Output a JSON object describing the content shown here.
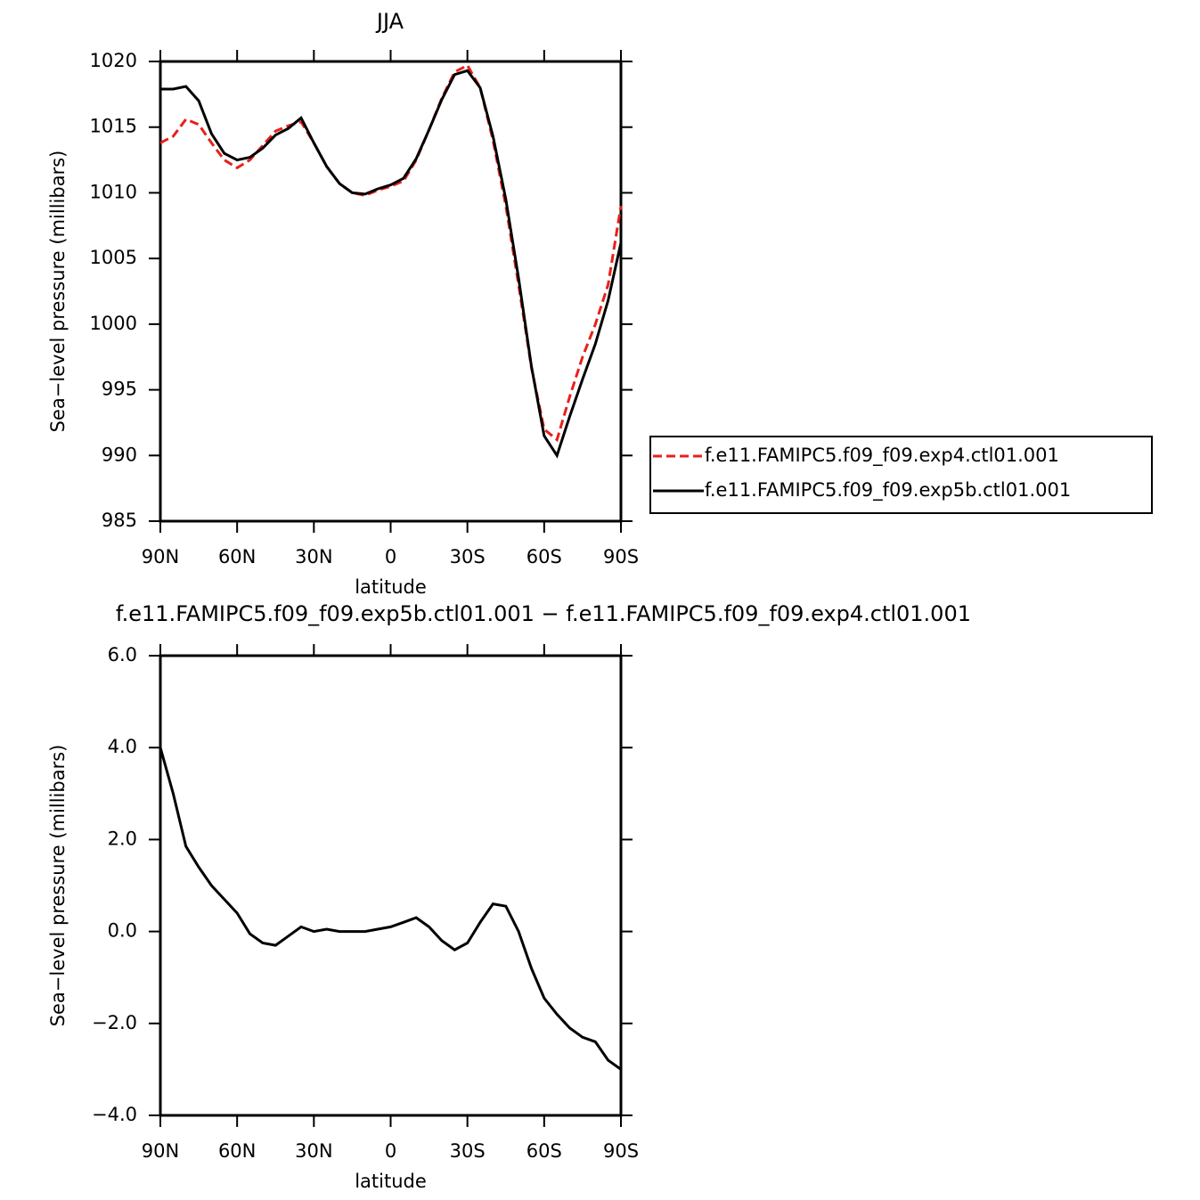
{
  "chart_data": [
    {
      "type": "line",
      "title": "JJA",
      "xlabel": "latitude",
      "ylabel": "Sea−level pressure (millibars)",
      "x": [
        90,
        85,
        80,
        75,
        70,
        65,
        60,
        55,
        50,
        45,
        40,
        35,
        30,
        25,
        20,
        15,
        10,
        5,
        0,
        -5,
        -10,
        -15,
        -20,
        -25,
        -30,
        -35,
        -40,
        -45,
        -50,
        -55,
        -60,
        -65,
        -70,
        -75,
        -80,
        -85,
        -90
      ],
      "series": [
        {
          "name": "f.e11.FAMIPC5.f09_f09.exp4.ctl01.001",
          "color": "#e8201c",
          "linestyle": "dashed",
          "values": [
            1013.8,
            1014.3,
            1015.6,
            1015.2,
            1013.8,
            1012.5,
            1011.9,
            1012.5,
            1013.6,
            1014.7,
            1015.1,
            1015.4,
            1013.8,
            1012.0,
            1010.7,
            1010.0,
            1009.8,
            1010.2,
            1010.5,
            1010.9,
            1012.5,
            1014.8,
            1017.2,
            1019.2,
            1019.7,
            1018.0,
            1014.0,
            1009.0,
            1003.0,
            996.7,
            992.0,
            991.2,
            994.5,
            997.5,
            1000.0,
            1003.0,
            1009.0
          ]
        },
        {
          "name": "f.e11.FAMIPC5.f09_f09.exp5b.ctl01.001",
          "color": "#000000",
          "linestyle": "solid",
          "values": [
            1017.9,
            1017.9,
            1018.1,
            1017.0,
            1014.5,
            1013.0,
            1012.5,
            1012.7,
            1013.4,
            1014.4,
            1014.9,
            1015.7,
            1013.8,
            1012.0,
            1010.7,
            1010.0,
            1009.9,
            1010.3,
            1010.6,
            1011.1,
            1012.6,
            1014.8,
            1017.1,
            1019.0,
            1019.3,
            1018.0,
            1014.3,
            1009.5,
            1003.5,
            996.8,
            991.5,
            990.0,
            993.0,
            995.8,
            998.5,
            1001.8,
            1006.2
          ]
        }
      ],
      "xlim": [
        90,
        -90
      ],
      "xticks": [
        {
          "value": 90,
          "label": "90N"
        },
        {
          "value": 60,
          "label": "60N"
        },
        {
          "value": 30,
          "label": "30N"
        },
        0,
        {
          "value": -30,
          "label": "30S"
        },
        {
          "value": -60,
          "label": "60S"
        },
        {
          "value": -90,
          "label": "90S"
        }
      ],
      "ylim": [
        985,
        1020
      ],
      "yticks": [
        985,
        990,
        995,
        1000,
        1005,
        1010,
        1015,
        1020
      ],
      "legend": "right"
    },
    {
      "type": "line",
      "title": "f.e11.FAMIPC5.f09_f09.exp5b.ctl01.001 − f.e11.FAMIPC5.f09_f09.exp4.ctl01.001",
      "xlabel": "latitude",
      "ylabel": "Sea−level pressure (millibars)",
      "x": [
        90,
        85,
        80,
        75,
        70,
        65,
        60,
        55,
        50,
        45,
        40,
        35,
        30,
        25,
        20,
        15,
        10,
        5,
        0,
        -5,
        -10,
        -15,
        -20,
        -25,
        -30,
        -35,
        -40,
        -45,
        -50,
        -55,
        -60,
        -65,
        -70,
        -75,
        -80,
        -85,
        -90
      ],
      "series": [
        {
          "color": "#000000",
          "linestyle": "solid",
          "values": [
            4.0,
            3.0,
            1.85,
            1.4,
            1.0,
            0.7,
            0.4,
            -0.05,
            -0.25,
            -0.3,
            -0.1,
            0.1,
            0.0,
            0.05,
            0.0,
            0.0,
            0.0,
            0.05,
            0.1,
            0.2,
            0.3,
            0.1,
            -0.2,
            -0.4,
            -0.25,
            0.2,
            0.6,
            0.55,
            0.0,
            -0.8,
            -1.45,
            -1.8,
            -2.1,
            -2.3,
            -2.4,
            -2.8,
            -3.0
          ]
        }
      ],
      "xlim": [
        90,
        -90
      ],
      "xticks": [
        {
          "value": 90,
          "label": "90N"
        },
        {
          "value": 60,
          "label": "60N"
        },
        {
          "value": 30,
          "label": "30N"
        },
        0,
        {
          "value": -30,
          "label": "30S"
        },
        {
          "value": -60,
          "label": "60S"
        },
        {
          "value": -90,
          "label": "90S"
        }
      ],
      "ylim": [
        -4,
        6
      ],
      "yticks": [
        {
          "value": -4,
          "label": "−4.0"
        },
        {
          "value": -2,
          "label": "−2.0"
        },
        {
          "value": 0,
          "label": "0.0"
        },
        {
          "value": 2,
          "label": "2.0"
        },
        {
          "value": 4,
          "label": "4.0"
        },
        {
          "value": 6,
          "label": "6.0"
        }
      ]
    }
  ]
}
